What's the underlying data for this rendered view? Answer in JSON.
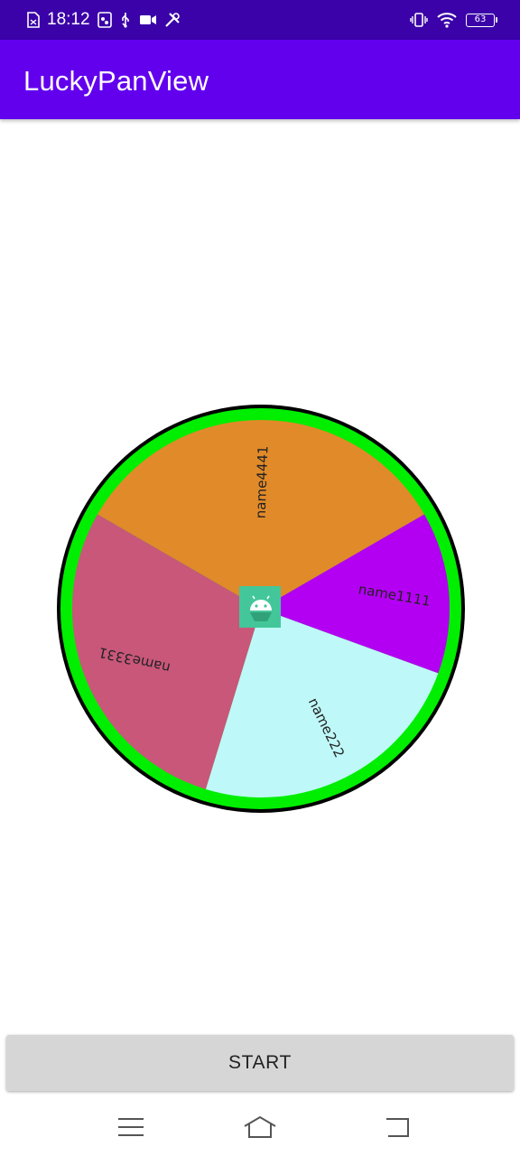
{
  "status_bar": {
    "time": "18:12",
    "battery": "63"
  },
  "app_bar": {
    "title": "LuckyPanView"
  },
  "wheel": {
    "segments": [
      {
        "label": "name4441",
        "color": "#e18a2a"
      },
      {
        "label": "name1111",
        "color": "#b300f2"
      },
      {
        "label": "name222",
        "color": "#bff8f8"
      },
      {
        "label": "name3331",
        "color": "#c8577a"
      }
    ],
    "ring_color": "#00ee00",
    "center_icon": "android-icon"
  },
  "start_button": {
    "label": "START"
  },
  "nav_bar": {
    "icons": [
      "menu-icon",
      "home-icon",
      "back-icon"
    ]
  }
}
